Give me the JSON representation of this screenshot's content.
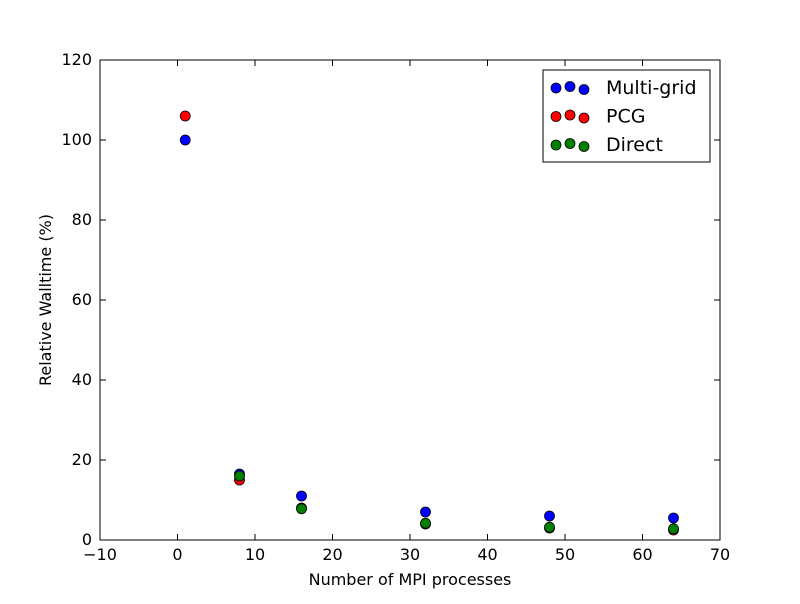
{
  "chart_data": {
    "type": "scatter",
    "title": "",
    "xlabel": "Number of MPI processes",
    "ylabel": "Relative Walltime (%)",
    "xlim": [
      -10,
      70
    ],
    "ylim": [
      0,
      120
    ],
    "xticks": [
      -10,
      0,
      10,
      20,
      30,
      40,
      50,
      60,
      70
    ],
    "yticks": [
      0,
      20,
      40,
      60,
      80,
      100,
      120
    ],
    "x_tick_labels": [
      "−10",
      "0",
      "10",
      "20",
      "30",
      "40",
      "50",
      "60",
      "70"
    ],
    "y_tick_labels": [
      "0",
      "20",
      "40",
      "60",
      "80",
      "100",
      "120"
    ],
    "grid": false,
    "legend_position": "top-right",
    "series": [
      {
        "name": "Multi-grid",
        "color": "#0000ff",
        "x": [
          1,
          8,
          16,
          32,
          48,
          64
        ],
        "y": [
          100,
          16.5,
          11,
          7,
          6,
          5.5
        ]
      },
      {
        "name": "PCG",
        "color": "#ff0000",
        "x": [
          1,
          8,
          16,
          32,
          48,
          64
        ],
        "y": [
          106,
          15,
          8,
          4,
          3,
          2.5
        ]
      },
      {
        "name": "Direct",
        "color": "#008000",
        "x": [
          8,
          16,
          32,
          48,
          64
        ],
        "y": [
          16,
          7.8,
          4.2,
          3.2,
          2.8
        ]
      }
    ]
  }
}
